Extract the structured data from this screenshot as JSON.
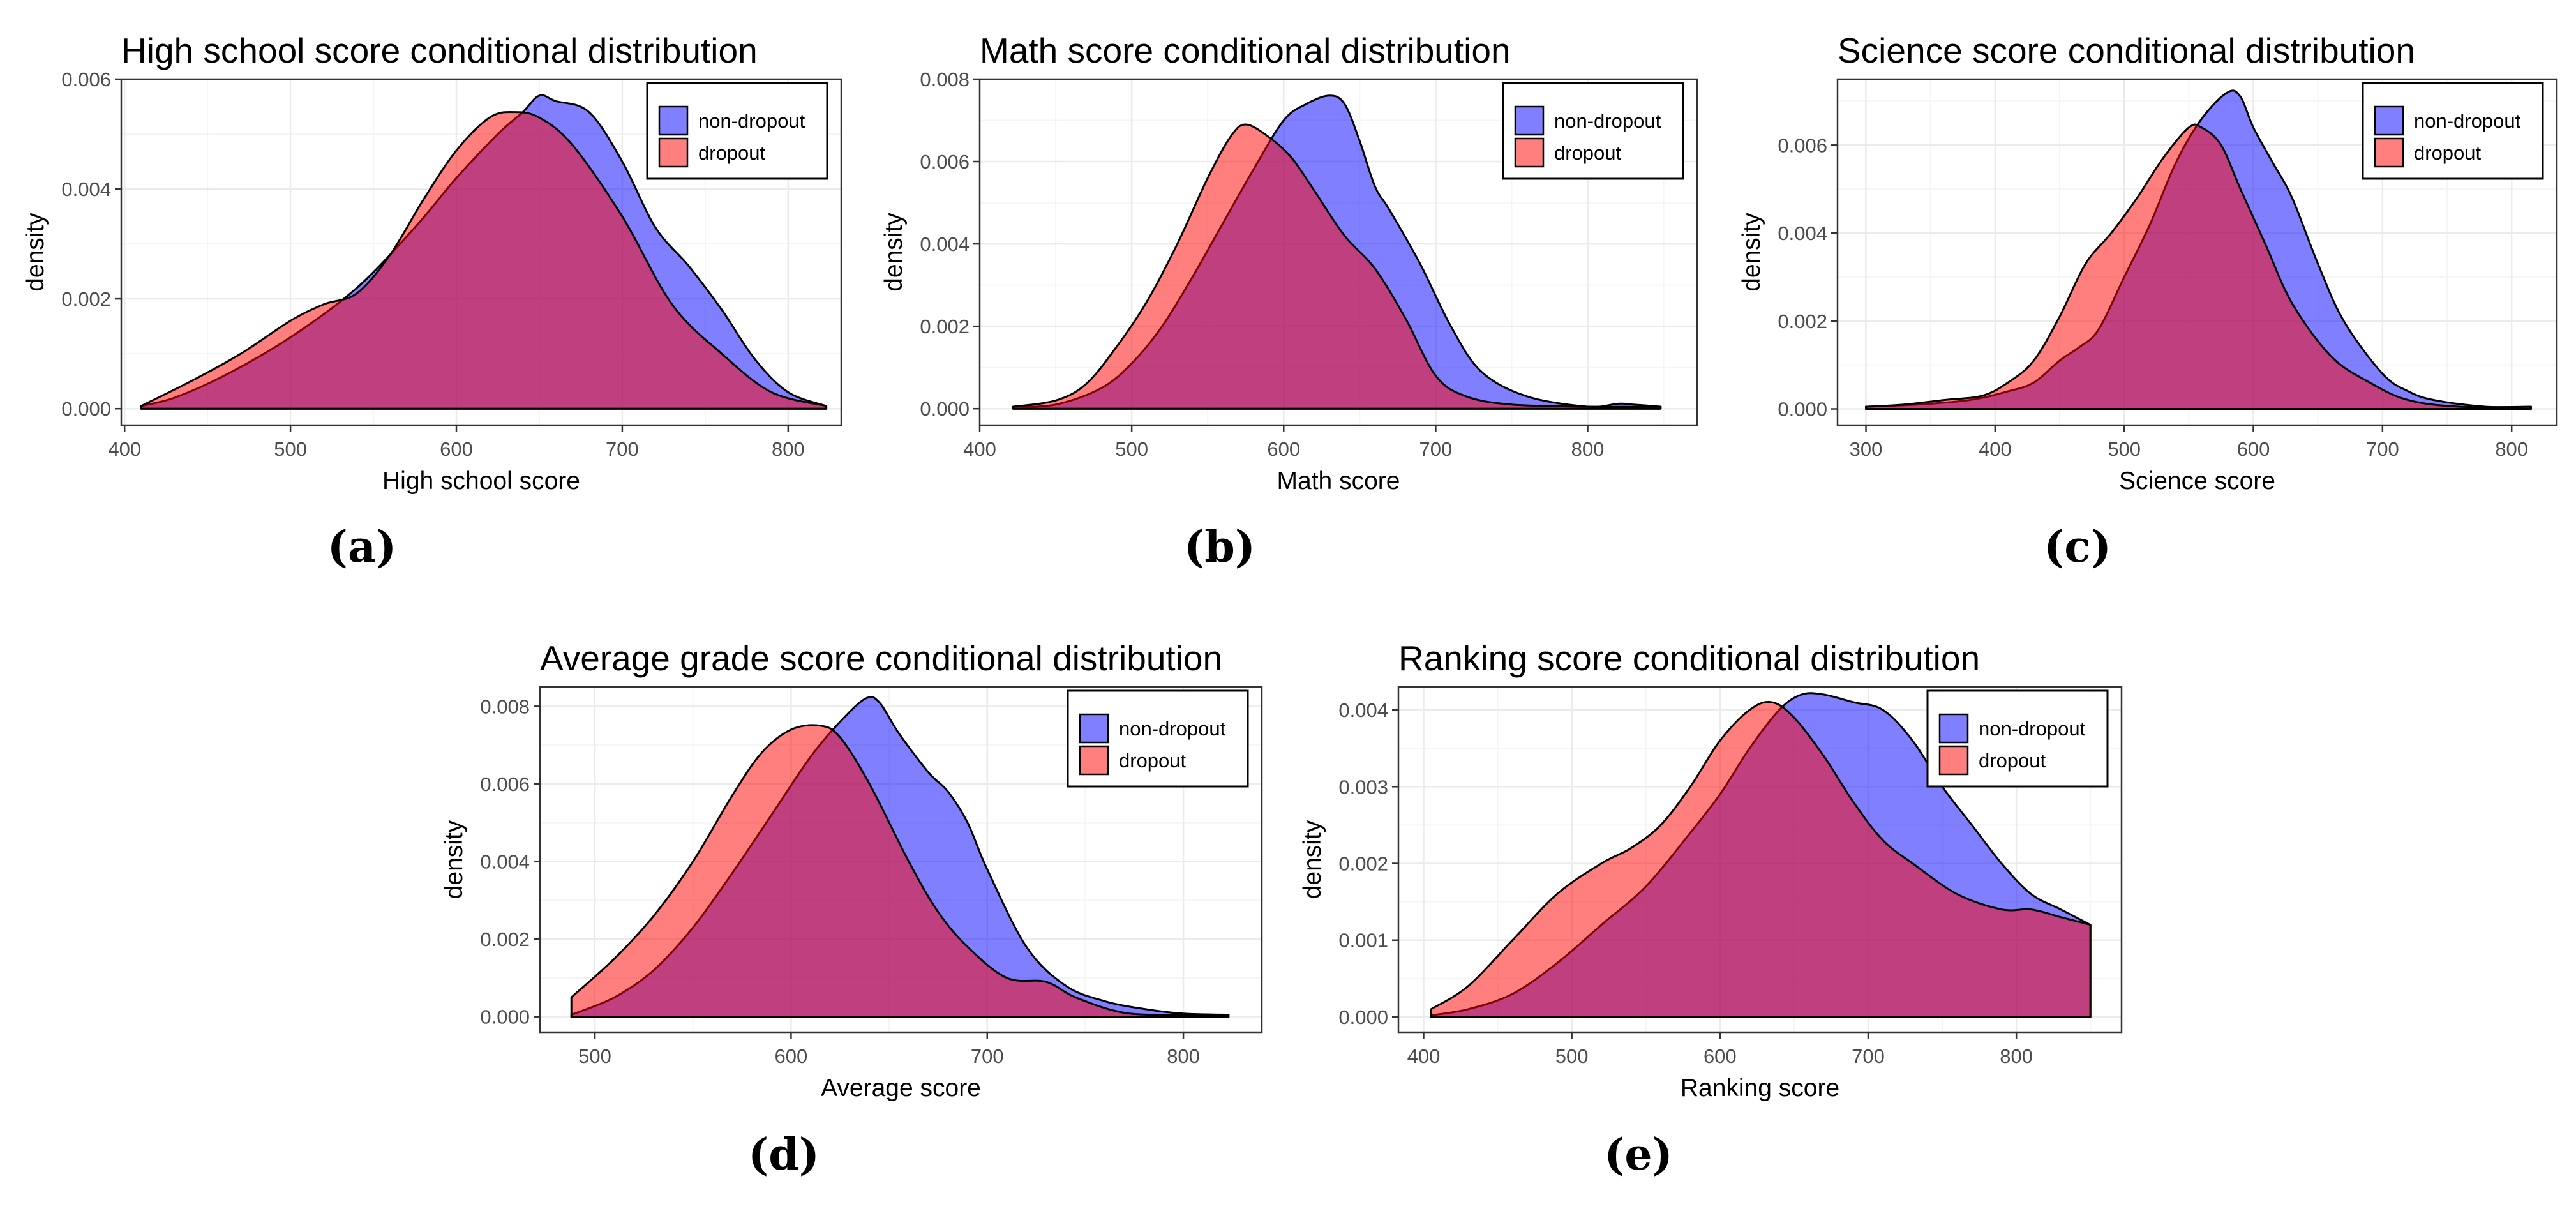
{
  "colors": {
    "nondropout": "#0000ff",
    "dropout": "#ff0000",
    "overlap_alpha": 0.5,
    "grid_major": "#ebebeb",
    "grid_minor": "#f5f5f5",
    "axis_text": "#4d4d4d"
  },
  "legend_labels": [
    "non-dropout",
    "dropout"
  ],
  "chart_data": [
    {
      "type": "area",
      "caption": "(a)",
      "title": "High school score conditional distribution",
      "xlabel": "High school score",
      "ylabel": "density",
      "xlim": [
        398,
        832
      ],
      "ylim": [
        -0.0003,
        0.006
      ],
      "xticks": [
        400,
        500,
        600,
        700,
        800
      ],
      "yticks": [
        0.0,
        0.002,
        0.004,
        0.006
      ],
      "ytick_labels": [
        "0.000",
        "0.002",
        "0.004",
        "0.006"
      ],
      "legend": "top-right",
      "series": [
        {
          "name": "non-dropout",
          "x": [
            410,
            430,
            460,
            500,
            540,
            575,
            600,
            625,
            640,
            650,
            660,
            680,
            700,
            720,
            740,
            760,
            780,
            800,
            823
          ],
          "y": [
            5e-05,
            0.0002,
            0.0006,
            0.0013,
            0.0022,
            0.0033,
            0.0042,
            0.005,
            0.0054,
            0.0057,
            0.0056,
            0.0054,
            0.0045,
            0.0033,
            0.0026,
            0.0018,
            0.0009,
            0.0003,
            5e-05
          ]
        },
        {
          "name": "dropout",
          "x": [
            410,
            440,
            470,
            500,
            520,
            540,
            560,
            580,
            600,
            620,
            635,
            650,
            670,
            700,
            730,
            760,
            790,
            823
          ],
          "y": [
            5e-05,
            0.0005,
            0.001,
            0.0016,
            0.0019,
            0.0021,
            0.0028,
            0.0038,
            0.0047,
            0.0053,
            0.0054,
            0.0053,
            0.0048,
            0.0035,
            0.0019,
            0.001,
            0.0003,
            5e-05
          ]
        }
      ]
    },
    {
      "type": "area",
      "caption": "(b)",
      "title": "Math score conditional distribution",
      "xlabel": "Math score",
      "ylabel": "density",
      "xlim": [
        400,
        872
      ],
      "ylim": [
        -0.0004,
        0.008
      ],
      "xticks": [
        400,
        500,
        600,
        700,
        800
      ],
      "yticks": [
        0.0,
        0.002,
        0.004,
        0.006,
        0.008
      ],
      "ytick_labels": [
        "0.000",
        "0.002",
        "0.004",
        "0.006",
        "0.008"
      ],
      "legend": "top-right",
      "series": [
        {
          "name": "non-dropout",
          "x": [
            422,
            450,
            480,
            500,
            520,
            540,
            560,
            580,
            600,
            615,
            630,
            640,
            650,
            660,
            670,
            690,
            710,
            730,
            760,
            800,
            820,
            830,
            848
          ],
          "y": [
            5e-05,
            0.0001,
            0.0005,
            0.0011,
            0.002,
            0.0032,
            0.0045,
            0.0058,
            0.007,
            0.0074,
            0.0076,
            0.0074,
            0.0065,
            0.0054,
            0.0048,
            0.0035,
            0.002,
            0.0009,
            0.0003,
            5e-05,
            0.00012,
            0.0001,
            5e-05
          ]
        },
        {
          "name": "dropout",
          "x": [
            422,
            450,
            470,
            490,
            510,
            530,
            550,
            565,
            575,
            590,
            605,
            620,
            640,
            660,
            680,
            700,
            720,
            750,
            800,
            848
          ],
          "y": [
            5e-05,
            0.0002,
            0.0006,
            0.0015,
            0.0026,
            0.004,
            0.0056,
            0.0066,
            0.0069,
            0.0066,
            0.0061,
            0.0053,
            0.0042,
            0.0034,
            0.0022,
            0.0008,
            0.0003,
            0.0001,
            5e-05,
            5e-05
          ]
        }
      ]
    },
    {
      "type": "area",
      "caption": "(c)",
      "title": "Science score conditional distribution",
      "xlabel": "Science score",
      "ylabel": "density",
      "xlim": [
        278,
        835
      ],
      "ylim": [
        -0.00037,
        0.0075
      ],
      "xticks": [
        300,
        400,
        500,
        600,
        700,
        800
      ],
      "yticks": [
        0.0,
        0.002,
        0.004,
        0.006
      ],
      "ytick_labels": [
        "0.000",
        "0.002",
        "0.004",
        "0.006"
      ],
      "legend": "top-right",
      "series": [
        {
          "name": "non-dropout",
          "x": [
            300,
            340,
            380,
            410,
            430,
            450,
            465,
            480,
            500,
            520,
            540,
            560,
            580,
            590,
            600,
            615,
            630,
            650,
            670,
            700,
            720,
            740,
            780,
            815
          ],
          "y": [
            5e-05,
            0.0001,
            0.0002,
            0.0004,
            0.0006,
            0.0011,
            0.0014,
            0.0018,
            0.003,
            0.0042,
            0.0056,
            0.0066,
            0.0072,
            0.0071,
            0.0064,
            0.0056,
            0.0048,
            0.0033,
            0.002,
            0.0008,
            0.0004,
            0.0002,
            5e-05,
            5e-05
          ]
        },
        {
          "name": "dropout",
          "x": [
            300,
            330,
            360,
            390,
            410,
            430,
            450,
            470,
            490,
            510,
            530,
            550,
            560,
            575,
            590,
            610,
            630,
            660,
            690,
            720,
            760,
            815
          ],
          "y": [
            5e-05,
            0.0001,
            0.0002,
            0.0003,
            0.0006,
            0.0011,
            0.0021,
            0.0033,
            0.004,
            0.0048,
            0.0057,
            0.0064,
            0.0064,
            0.006,
            0.005,
            0.0037,
            0.0024,
            0.0012,
            0.0006,
            0.0002,
            5e-05,
            5e-05
          ]
        }
      ]
    },
    {
      "type": "area",
      "caption": "(d)",
      "title": "Average grade score conditional distribution",
      "xlabel": "Average score",
      "ylabel": "density",
      "xlim": [
        472,
        840
      ],
      "ylim": [
        -0.0004,
        0.0085
      ],
      "xticks": [
        500,
        600,
        700,
        800
      ],
      "yticks": [
        0.0,
        0.002,
        0.004,
        0.006,
        0.008
      ],
      "ytick_labels": [
        "0.000",
        "0.002",
        "0.004",
        "0.006",
        "0.008"
      ],
      "legend": "top-right",
      "series": [
        {
          "name": "non-dropout",
          "x": [
            488,
            510,
            530,
            550,
            570,
            590,
            610,
            625,
            638,
            645,
            655,
            670,
            680,
            690,
            700,
            720,
            740,
            760,
            780,
            800,
            823
          ],
          "y": [
            5e-05,
            0.0005,
            0.0012,
            0.0023,
            0.0037,
            0.0052,
            0.0067,
            0.0076,
            0.0082,
            0.0081,
            0.0073,
            0.0063,
            0.0058,
            0.005,
            0.0038,
            0.0018,
            0.0008,
            0.0004,
            0.0002,
            8e-05,
            5e-05
          ]
        },
        {
          "name": "dropout",
          "x": [
            488,
            510,
            530,
            550,
            570,
            585,
            600,
            615,
            625,
            640,
            660,
            675,
            690,
            710,
            730,
            745,
            770,
            800,
            823
          ],
          "y": [
            0.0005,
            0.0015,
            0.0026,
            0.004,
            0.0057,
            0.0068,
            0.0074,
            0.0075,
            0.0072,
            0.006,
            0.004,
            0.0027,
            0.0018,
            0.001,
            0.0009,
            0.0005,
            0.0001,
            5e-05,
            5e-05
          ]
        }
      ]
    },
    {
      "type": "area",
      "caption": "(e)",
      "title": "Ranking score conditional distribution",
      "xlabel": "Ranking score",
      "ylabel": "density",
      "xlim": [
        383,
        871
      ],
      "ylim": [
        -0.0002,
        0.0043
      ],
      "xticks": [
        400,
        500,
        600,
        700,
        800
      ],
      "yticks": [
        0.0,
        0.001,
        0.002,
        0.003,
        0.004
      ],
      "ytick_labels": [
        "0.000",
        "0.001",
        "0.002",
        "0.003",
        "0.004"
      ],
      "legend": "top-right",
      "series": [
        {
          "name": "non-dropout",
          "x": [
            405,
            430,
            460,
            490,
            520,
            550,
            580,
            600,
            620,
            640,
            655,
            670,
            690,
            710,
            730,
            750,
            770,
            790,
            810,
            830,
            850
          ],
          "y": [
            2e-05,
            0.0001,
            0.0003,
            0.0007,
            0.0012,
            0.0017,
            0.0024,
            0.0029,
            0.0035,
            0.004,
            0.0042,
            0.0042,
            0.0041,
            0.004,
            0.0036,
            0.003,
            0.0025,
            0.002,
            0.0016,
            0.0014,
            0.0012
          ]
        },
        {
          "name": "dropout",
          "x": [
            405,
            430,
            460,
            490,
            520,
            540,
            560,
            580,
            600,
            620,
            635,
            650,
            670,
            690,
            710,
            730,
            760,
            790,
            810,
            830,
            850
          ],
          "y": [
            0.0001,
            0.0004,
            0.001,
            0.0016,
            0.002,
            0.0022,
            0.0025,
            0.003,
            0.0036,
            0.004,
            0.0041,
            0.0039,
            0.0034,
            0.0028,
            0.0023,
            0.002,
            0.0016,
            0.0014,
            0.0014,
            0.0013,
            0.0012
          ]
        }
      ]
    }
  ]
}
